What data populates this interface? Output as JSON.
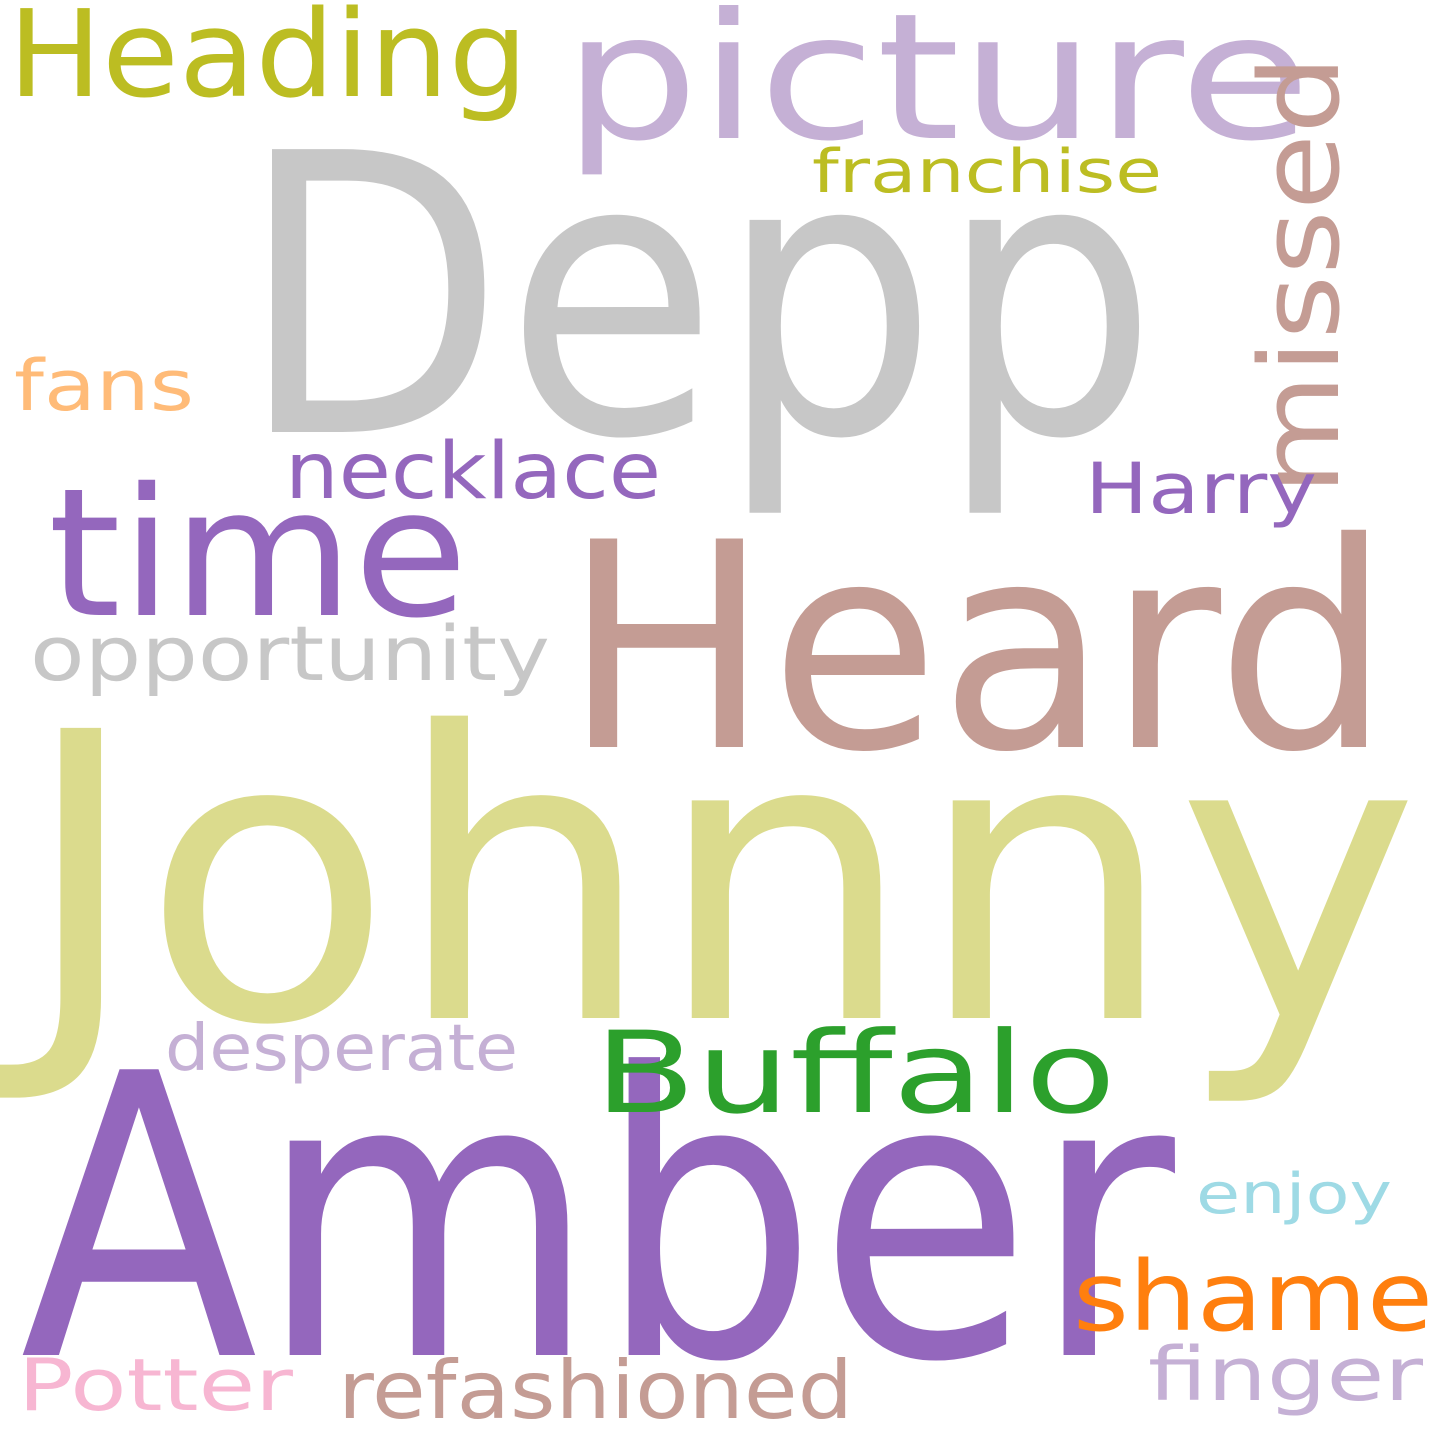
{
  "words": [
    {
      "key": "johnny",
      "text": "Johnny",
      "color": "#dbdb8d"
    },
    {
      "key": "amber",
      "text": "Amber",
      "color": "#9467bd"
    },
    {
      "key": "depp",
      "text": "Depp",
      "color": "#c7c7c7"
    },
    {
      "key": "heard",
      "text": "Heard",
      "color": "#c49c94"
    },
    {
      "key": "picture",
      "text": "picture",
      "color": "#c5b0d5"
    },
    {
      "key": "time",
      "text": "time",
      "color": "#9467bd"
    },
    {
      "key": "heading",
      "text": "Heading",
      "color": "#bcbd22"
    },
    {
      "key": "buffalo",
      "text": "Buffalo",
      "color": "#2ca02c"
    },
    {
      "key": "missed",
      "text": "missed",
      "color": "#c49c94"
    },
    {
      "key": "shame",
      "text": "shame",
      "color": "#ff7f0e"
    },
    {
      "key": "refashioned",
      "text": "refashioned",
      "color": "#c49c94"
    },
    {
      "key": "necklace",
      "text": "necklace",
      "color": "#9467bd"
    },
    {
      "key": "opportunity",
      "text": "opportunity",
      "color": "#c7c7c7"
    },
    {
      "key": "finger",
      "text": "finger",
      "color": "#c5b0d5"
    },
    {
      "key": "potter",
      "text": "Potter",
      "color": "#f7b6d2"
    },
    {
      "key": "harry",
      "text": "Harry",
      "color": "#9467bd"
    },
    {
      "key": "desperate",
      "text": "desperate",
      "color": "#c5b0d5"
    },
    {
      "key": "franchise",
      "text": "franchise",
      "color": "#bcbd22"
    },
    {
      "key": "fans",
      "text": "fans",
      "color": "#ffbb78"
    },
    {
      "key": "enjoy",
      "text": "enjoy",
      "color": "#9edae5"
    }
  ]
}
